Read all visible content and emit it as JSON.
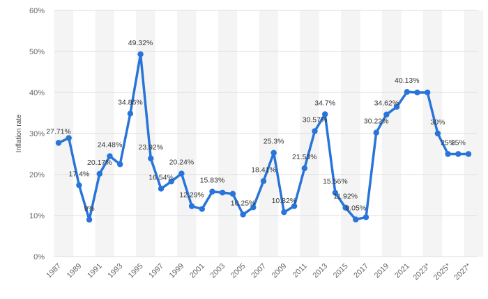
{
  "chart_data": {
    "type": "line",
    "title": "",
    "xlabel": "",
    "ylabel": "Inflation rate",
    "ylim": [
      0,
      60
    ],
    "yticks": [
      "0%",
      "10%",
      "20%",
      "30%",
      "40%",
      "50%",
      "60%"
    ],
    "yticks_values": [
      0,
      10,
      20,
      30,
      40,
      50,
      60
    ],
    "x_tick_labels": [
      "1987",
      "1989",
      "1991",
      "1993",
      "1995",
      "1997",
      "1999",
      "2001",
      "2003",
      "2005",
      "2007",
      "2009",
      "2011",
      "2013",
      "2015",
      "2017",
      "2019",
      "2021",
      "2023*",
      "2025*",
      "2027*"
    ],
    "series": [
      {
        "name": "Inflation rate",
        "color": "#2874d8",
        "years": [
          1987,
          1988,
          1989,
          1990,
          1991,
          1992,
          1993,
          1994,
          1995,
          1996,
          1997,
          1998,
          1999,
          2000,
          2001,
          2002,
          2003,
          2004,
          2005,
          2006,
          2007,
          2008,
          2009,
          2010,
          2011,
          2012,
          2013,
          2014,
          2015,
          2016,
          2017,
          2018,
          2019,
          2020,
          2021,
          2022,
          2023,
          2024,
          2025,
          2026,
          2027
        ],
        "values": [
          27.71,
          28.9,
          17.4,
          9.0,
          20.17,
          24.48,
          22.5,
          34.86,
          49.32,
          23.92,
          16.54,
          18.3,
          20.24,
          12.29,
          11.6,
          15.83,
          15.6,
          15.3,
          10.25,
          12.0,
          18.41,
          25.3,
          10.82,
          12.3,
          21.53,
          30.57,
          34.7,
          15.56,
          11.92,
          9.05,
          9.6,
          30.22,
          34.62,
          36.5,
          40.13,
          40.0,
          40.0,
          30.0,
          25.0,
          25.0,
          25.0
        ],
        "labels": [
          "27.71%",
          "",
          "17.4%",
          "9%",
          "20.17%",
          "24.48%",
          "",
          "34.86%",
          "49.32%",
          "23.92%",
          "16.54%",
          "",
          "20.24%",
          "12.29%",
          "",
          "15.83%",
          "",
          "",
          "10.25%",
          "",
          "18.41%",
          "25.3%",
          "10.82%",
          "",
          "21.53%",
          "30.57%",
          "34.7%",
          "15.56%",
          "11.92%",
          "9.05%",
          "",
          "30.22%",
          "34.62%",
          "",
          "40.13%",
          "",
          "",
          "30%",
          "25%",
          "25%",
          ""
        ]
      }
    ]
  }
}
